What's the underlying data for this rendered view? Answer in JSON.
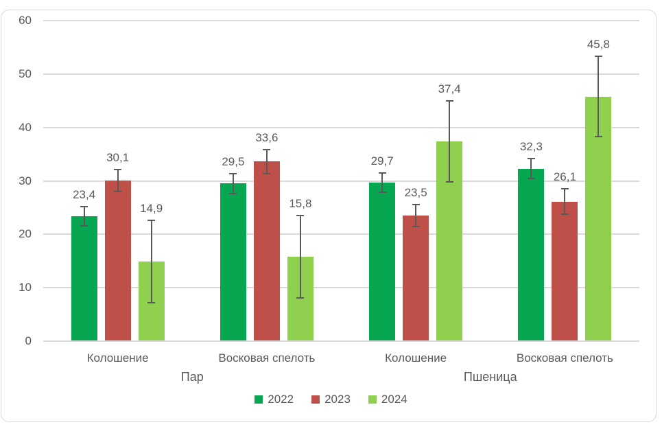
{
  "chart_data": {
    "type": "bar",
    "categories": [
      "Колошение",
      "Восковая спелоть",
      "Колошение",
      "Восковая спелоть"
    ],
    "category_groups": [
      {
        "label": "Пар",
        "span": [
          0,
          1
        ]
      },
      {
        "label": "Пшеница",
        "span": [
          2,
          3
        ]
      }
    ],
    "series": [
      {
        "name": "2022",
        "color": "#07A651",
        "values": [
          23.4,
          29.5,
          29.7,
          32.3
        ],
        "labels": [
          "23,4",
          "29,5",
          "29,7",
          "32,3"
        ],
        "errors": [
          1.9,
          2.0,
          1.9,
          2.0
        ]
      },
      {
        "name": "2023",
        "color": "#BF4F49",
        "values": [
          30.1,
          33.6,
          23.5,
          26.1
        ],
        "labels": [
          "30,1",
          "33,6",
          "23,5",
          "26,1"
        ],
        "errors": [
          2.2,
          2.4,
          2.2,
          2.5
        ]
      },
      {
        "name": "2024",
        "color": "#8FD14F",
        "values": [
          14.9,
          15.8,
          37.4,
          45.8
        ],
        "labels": [
          "14,9",
          "15,8",
          "37,4",
          "45,8"
        ],
        "errors": [
          7.8,
          7.8,
          7.7,
          7.7
        ]
      }
    ],
    "y_axis": {
      "min": 0,
      "max": 60,
      "step": 10,
      "tick_labels": [
        "0",
        "10",
        "20",
        "30",
        "40",
        "50",
        "60"
      ]
    },
    "legend": {
      "position": "bottom",
      "items": [
        "2022",
        "2023",
        "2024"
      ]
    },
    "grid": true,
    "colors": {
      "gridline": "#D9D9D9",
      "axis_text": "#595959",
      "data_label_text": "#595959",
      "error_bar": "#595959",
      "frame_border": "#D9D9D9",
      "background": "#FFFFFF"
    }
  }
}
